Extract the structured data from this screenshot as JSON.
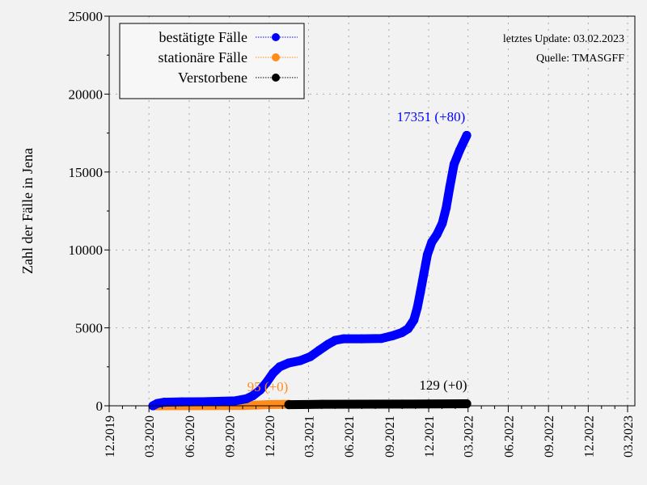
{
  "chart_data": {
    "type": "line",
    "xlabel": "",
    "ylabel": "Zahl der Fälle in Jena",
    "ylim": [
      0,
      25000
    ],
    "yticks": [
      "0",
      "5000",
      "10000",
      "15000",
      "20000",
      "25000"
    ],
    "xlim": [
      "2019-12-01",
      "2023-03-01"
    ],
    "xticks": [
      "12.2019",
      "03.2020",
      "06.2020",
      "09.2020",
      "12.2020",
      "03.2021",
      "06.2021",
      "09.2021",
      "12.2021",
      "03.2022",
      "06.2022",
      "09.2022",
      "12.2022",
      "03.2023"
    ],
    "grid": true,
    "legend_position": "top-left",
    "annotations": {
      "update": "letztes Update: 03.02.2023",
      "source": "Quelle: TMASGFF"
    },
    "series": [
      {
        "name": "bestätigte Fälle",
        "color": "#0000ff",
        "end_label": "17351 (+80)",
        "points": [
          [
            "2020-03-10",
            0
          ],
          [
            "2020-03-20",
            150
          ],
          [
            "2020-04-05",
            230
          ],
          [
            "2020-05-15",
            250
          ],
          [
            "2020-07-01",
            260
          ],
          [
            "2020-08-15",
            290
          ],
          [
            "2020-09-15",
            320
          ],
          [
            "2020-10-10",
            450
          ],
          [
            "2020-10-25",
            650
          ],
          [
            "2020-11-10",
            1000
          ],
          [
            "2020-11-25",
            1500
          ],
          [
            "2020-12-10",
            2100
          ],
          [
            "2020-12-25",
            2500
          ],
          [
            "2021-01-15",
            2750
          ],
          [
            "2021-02-10",
            2900
          ],
          [
            "2021-03-05",
            3150
          ],
          [
            "2021-03-25",
            3550
          ],
          [
            "2021-04-15",
            3950
          ],
          [
            "2021-05-01",
            4200
          ],
          [
            "2021-05-20",
            4300
          ],
          [
            "2021-07-01",
            4300
          ],
          [
            "2021-08-15",
            4320
          ],
          [
            "2021-09-10",
            4500
          ],
          [
            "2021-10-01",
            4700
          ],
          [
            "2021-10-15",
            4950
          ],
          [
            "2021-10-28",
            5500
          ],
          [
            "2021-11-05",
            6300
          ],
          [
            "2021-11-12",
            7300
          ],
          [
            "2021-11-20",
            8500
          ],
          [
            "2021-11-28",
            9700
          ],
          [
            "2021-12-08",
            10500
          ],
          [
            "2021-12-20",
            11000
          ],
          [
            "2022-01-01",
            11700
          ],
          [
            "2022-01-10",
            12700
          ],
          [
            "2022-01-18",
            14000
          ],
          [
            "2022-01-28",
            15500
          ],
          [
            "2022-02-10",
            16400
          ],
          [
            "2022-02-26",
            17351
          ]
        ]
      },
      {
        "name": "stationäre Fälle",
        "color": "#ff8c1a",
        "end_label": "95 (+0)",
        "points": [
          [
            "2020-03-15",
            0
          ],
          [
            "2020-05-01",
            5
          ],
          [
            "2020-08-01",
            10
          ],
          [
            "2020-10-01",
            20
          ],
          [
            "2020-11-01",
            45
          ],
          [
            "2020-12-01",
            80
          ],
          [
            "2021-01-15",
            95
          ]
        ]
      },
      {
        "name": "Verstorbene",
        "color": "#000000",
        "end_label": "129 (+0)",
        "points": [
          [
            "2021-01-15",
            70
          ],
          [
            "2021-04-01",
            95
          ],
          [
            "2021-07-01",
            105
          ],
          [
            "2021-10-01",
            110
          ],
          [
            "2021-12-01",
            115
          ],
          [
            "2022-02-26",
            129
          ]
        ]
      }
    ]
  }
}
